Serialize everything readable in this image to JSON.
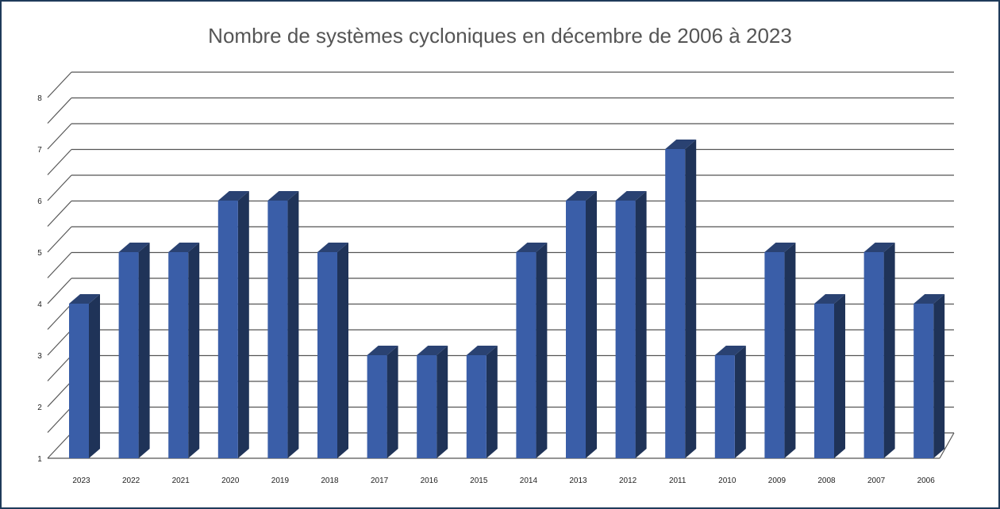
{
  "chart_data": {
    "type": "bar",
    "title": "Nombre de systèmes cycloniques en décembre de 2006 à 2023",
    "categories": [
      "2023",
      "2022",
      "2021",
      "2020",
      "2019",
      "2018",
      "2017",
      "2016",
      "2015",
      "2014",
      "2013",
      "2012",
      "2011",
      "2010",
      "2009",
      "2008",
      "2007",
      "2006"
    ],
    "values": [
      4,
      5,
      5,
      6,
      6,
      5,
      3,
      3,
      3,
      5,
      6,
      6,
      7,
      3,
      5,
      4,
      5,
      4
    ],
    "ylim": [
      1,
      8
    ],
    "yticks": [
      "1",
      "2",
      "3",
      "4",
      "5",
      "6",
      "7",
      "8"
    ],
    "grid": true,
    "xlabel": "",
    "ylabel": "",
    "colors": {
      "bar_front": "#3a5ea8",
      "bar_side": "#1f3358",
      "bar_top": "#2a4272",
      "grid": "#555555"
    }
  }
}
